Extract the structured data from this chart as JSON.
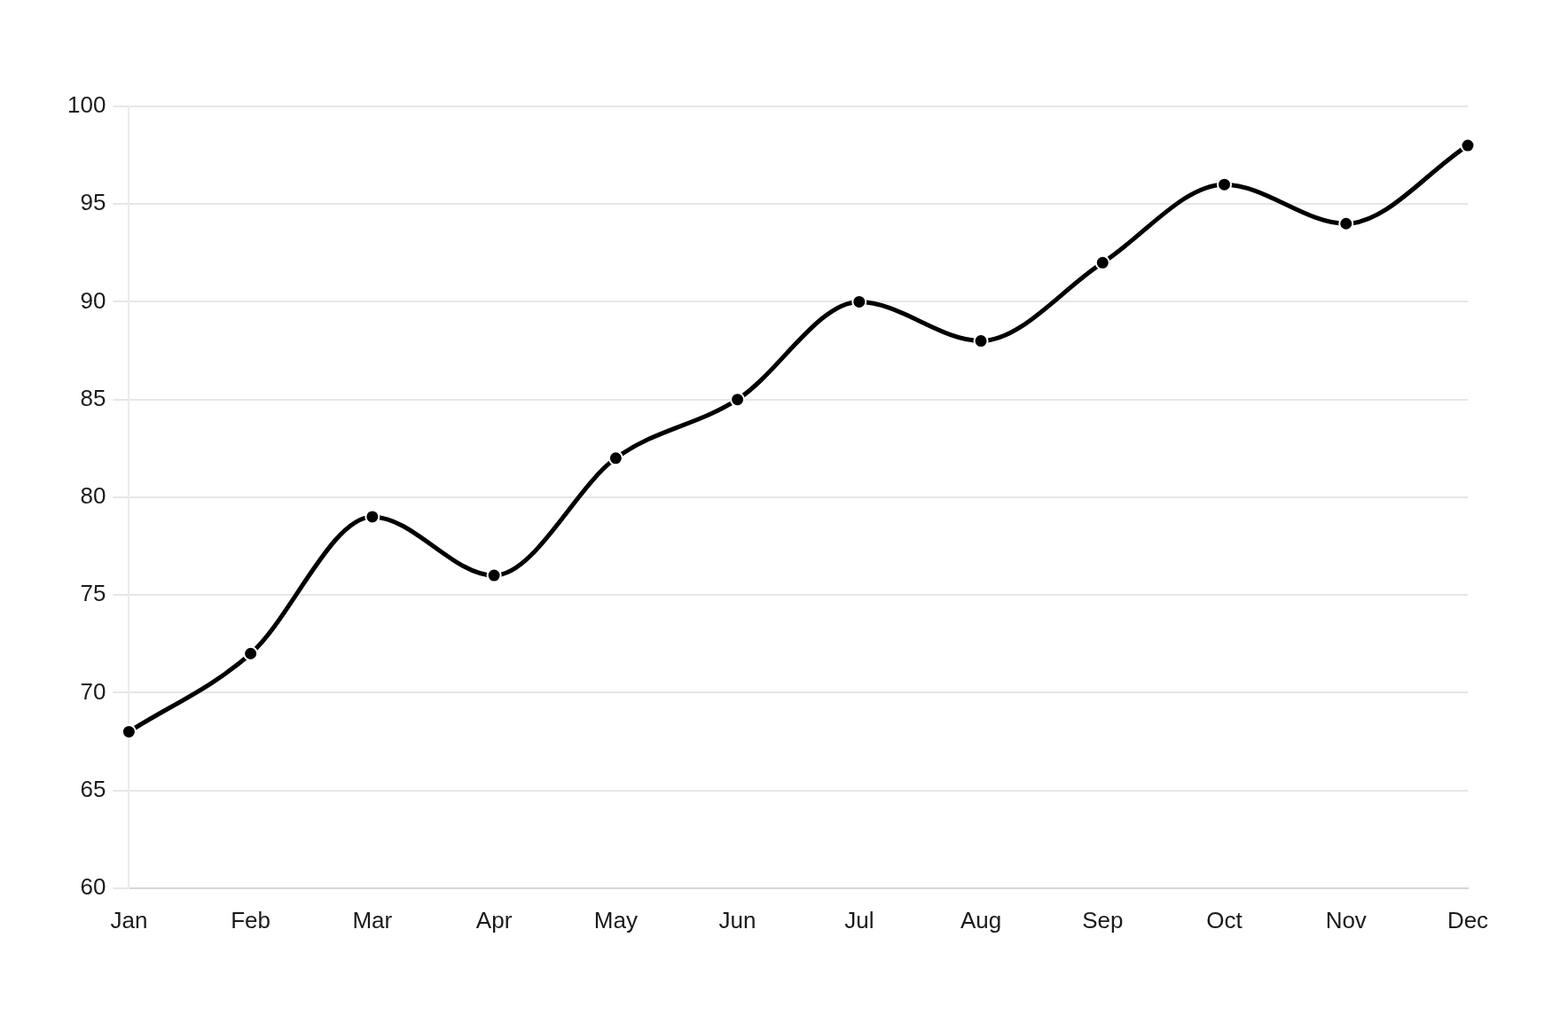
{
  "chart_data": {
    "type": "line",
    "categories": [
      "Jan",
      "Feb",
      "Mar",
      "Apr",
      "May",
      "Jun",
      "Jul",
      "Aug",
      "Sep",
      "Oct",
      "Nov",
      "Dec"
    ],
    "values": [
      68,
      72,
      79,
      76,
      82,
      85,
      90,
      88,
      92,
      96,
      94,
      98
    ],
    "color": "#000000",
    "ylim": [
      60,
      100
    ],
    "yticks": [
      60,
      65,
      70,
      75,
      80,
      85,
      90,
      95,
      100
    ],
    "grid": "y",
    "marker": "circle",
    "line_style": "solid"
  }
}
